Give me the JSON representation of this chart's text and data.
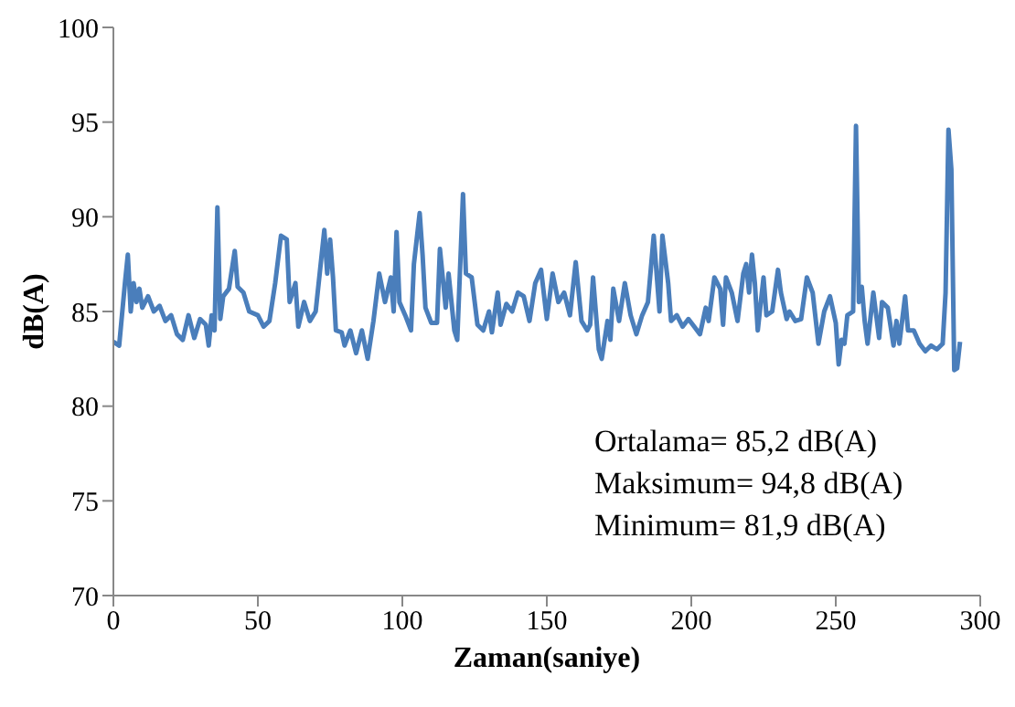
{
  "chart_data": {
    "type": "line",
    "xlabel": "Zaman(saniye)",
    "ylabel": "dB(A)",
    "x": [
      0,
      2,
      4,
      5,
      6,
      7,
      8,
      9,
      10,
      12,
      14,
      16,
      18,
      20,
      22,
      24,
      26,
      28,
      30,
      32,
      33,
      34,
      35,
      36,
      37,
      38,
      40,
      42,
      43,
      45,
      47,
      50,
      52,
      54,
      56,
      58,
      60,
      61,
      63,
      64,
      66,
      68,
      70,
      73,
      74,
      75,
      76,
      77,
      79,
      80,
      82,
      84,
      86,
      88,
      90,
      92,
      94,
      96,
      97,
      98,
      99,
      101,
      103,
      104,
      106,
      107,
      108,
      110,
      112,
      113,
      115,
      116,
      118,
      119,
      121,
      122,
      124,
      126,
      128,
      130,
      131,
      133,
      134,
      136,
      138,
      140,
      142,
      144,
      146,
      148,
      150,
      152,
      154,
      156,
      158,
      160,
      162,
      164,
      165,
      166,
      168,
      169,
      171,
      172,
      173,
      175,
      177,
      179,
      181,
      183,
      185,
      187,
      189,
      190,
      192,
      193,
      195,
      197,
      199,
      201,
      203,
      205,
      206,
      208,
      210,
      211,
      212,
      214,
      216,
      218,
      219,
      220,
      221,
      222,
      223,
      225,
      226,
      228,
      230,
      231,
      233,
      234,
      236,
      238,
      240,
      242,
      244,
      246,
      248,
      250,
      251,
      252,
      253,
      254,
      256,
      257,
      258,
      259,
      260,
      261,
      263,
      265,
      266,
      268,
      270,
      271,
      272,
      274,
      275,
      277,
      279,
      281,
      283,
      285,
      287,
      288,
      289,
      290,
      291,
      292,
      293
    ],
    "series": [
      {
        "color": "#4a7ebb",
        "values": [
          83.4,
          83.2,
          86.5,
          88.0,
          85.0,
          86.5,
          85.5,
          86.2,
          85.2,
          85.8,
          85.0,
          85.3,
          84.5,
          84.8,
          83.8,
          83.5,
          84.8,
          83.6,
          84.6,
          84.3,
          83.2,
          84.8,
          84.0,
          90.5,
          84.6,
          85.8,
          86.2,
          88.2,
          86.3,
          86.0,
          85.0,
          84.8,
          84.2,
          84.5,
          86.5,
          89.0,
          88.8,
          85.5,
          86.5,
          84.2,
          85.5,
          84.5,
          85.0,
          89.3,
          87.0,
          88.8,
          86.8,
          84.0,
          83.9,
          83.2,
          84.0,
          82.8,
          84.0,
          82.5,
          84.5,
          87.0,
          85.5,
          86.8,
          85.0,
          89.2,
          85.5,
          84.8,
          84.0,
          87.5,
          90.2,
          88.0,
          85.2,
          84.4,
          84.4,
          88.3,
          85.2,
          87.0,
          84.0,
          83.5,
          91.2,
          87.0,
          86.8,
          84.3,
          84.0,
          85.0,
          83.9,
          86.0,
          84.3,
          85.4,
          85.0,
          86.0,
          85.8,
          84.5,
          86.5,
          87.2,
          84.6,
          87.0,
          85.5,
          86.0,
          84.8,
          87.6,
          84.5,
          84.0,
          84.3,
          86.8,
          83.0,
          82.5,
          84.5,
          83.5,
          86.2,
          84.5,
          86.5,
          84.8,
          83.8,
          84.8,
          85.5,
          89.0,
          85.0,
          89.0,
          86.5,
          84.5,
          84.8,
          84.2,
          84.6,
          84.2,
          83.8,
          85.2,
          84.5,
          86.8,
          86.2,
          84.3,
          86.8,
          86.0,
          84.5,
          87.0,
          87.5,
          86.0,
          88.0,
          86.5,
          84.0,
          86.8,
          84.8,
          85.0,
          87.2,
          86.0,
          84.6,
          85.0,
          84.5,
          84.6,
          86.8,
          86.0,
          83.3,
          85.0,
          85.8,
          84.4,
          82.2,
          83.5,
          83.3,
          84.8,
          85.0,
          94.8,
          85.5,
          86.3,
          84.5,
          83.3,
          86.0,
          83.6,
          85.5,
          85.2,
          83.2,
          84.5,
          83.3,
          85.8,
          84.0,
          84.0,
          83.3,
          82.9,
          83.2,
          83.0,
          83.3,
          86.0,
          94.6,
          92.5,
          81.9,
          82.0,
          83.4
        ]
      }
    ],
    "xlim": [
      0,
      300
    ],
    "xticks": [
      0,
      50,
      100,
      150,
      200,
      250,
      300
    ],
    "ylim": [
      70,
      100
    ],
    "yticks": [
      70,
      75,
      80,
      85,
      90,
      95,
      100
    ],
    "marker": "none",
    "line_style": "solid",
    "grid": false,
    "legend": false,
    "annotations": [
      "Ortalama= 85,2 dB(A)",
      "Maksimum= 94,8 dB(A)",
      "Minimum= 81,9 dB(A)"
    ]
  }
}
